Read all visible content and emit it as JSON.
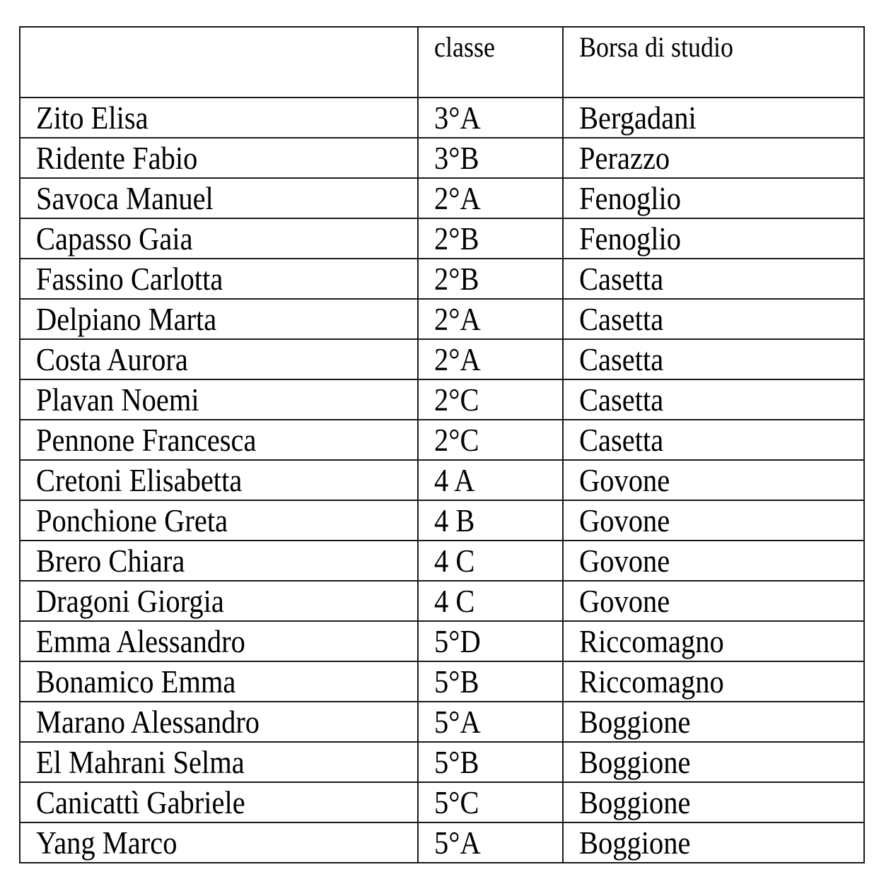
{
  "table": {
    "headers": [
      "",
      "classe",
      "Borsa di studio"
    ],
    "rows": [
      [
        "Zito Elisa",
        "3°A",
        "Bergadani"
      ],
      [
        "Ridente Fabio",
        "3°B",
        "Perazzo"
      ],
      [
        "Savoca Manuel",
        "2°A",
        "Fenoglio"
      ],
      [
        "Capasso Gaia",
        "2°B",
        "Fenoglio"
      ],
      [
        "Fassino Carlotta",
        "2°B",
        "Casetta"
      ],
      [
        "Delpiano Marta",
        "2°A",
        "Casetta"
      ],
      [
        "Costa Aurora",
        "2°A",
        "Casetta"
      ],
      [
        "Plavan Noemi",
        "2°C",
        "Casetta"
      ],
      [
        "Pennone Francesca",
        "2°C",
        "Casetta"
      ],
      [
        "Cretoni Elisabetta",
        "4 A",
        "Govone"
      ],
      [
        "Ponchione Greta",
        "4 B",
        "Govone"
      ],
      [
        "Brero Chiara",
        "4 C",
        "Govone"
      ],
      [
        "Dragoni Giorgia",
        "4 C",
        "Govone"
      ],
      [
        "Emma Alessandro",
        "5°D",
        "Riccomagno"
      ],
      [
        "Bonamico Emma",
        "5°B",
        "Riccomagno"
      ],
      [
        "Marano Alessandro",
        "5°A",
        "Boggione"
      ],
      [
        "El Mahrani Selma",
        "5°B",
        "Boggione"
      ],
      [
        "Canicattì Gabriele",
        "5°C",
        "Boggione"
      ],
      [
        "Yang Marco",
        "5°A",
        "Boggione"
      ]
    ]
  }
}
